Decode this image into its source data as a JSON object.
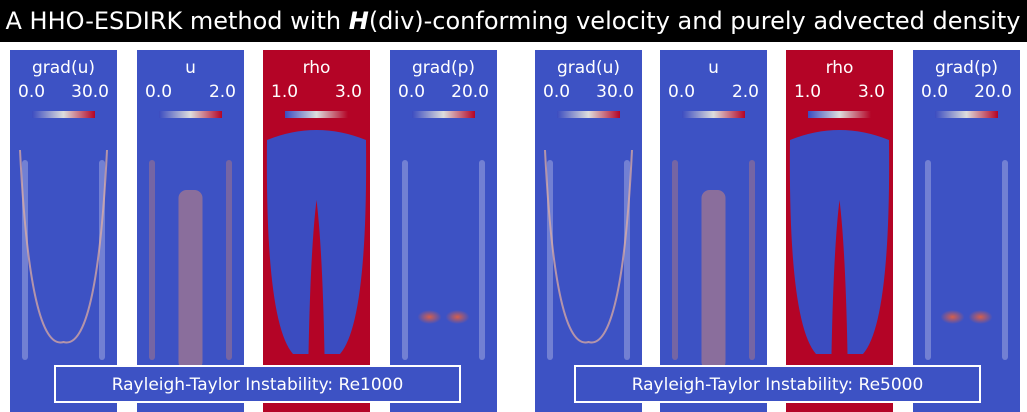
{
  "header": {
    "title_parts": [
      "A HHO-ESDIRK method with ",
      "H",
      "(div)-conforming velocity and purely advected density"
    ]
  },
  "groups": [
    {
      "caption": "Rayleigh-Taylor Instability: Re1000",
      "panels": [
        {
          "name": "grad(u)",
          "min": "0.0",
          "max": "30.0"
        },
        {
          "name": "u",
          "min": "0.0",
          "max": "2.0"
        },
        {
          "name": "rho",
          "min": "1.0",
          "max": "3.0"
        },
        {
          "name": "grad(p)",
          "min": "0.0",
          "max": "20.0"
        }
      ]
    },
    {
      "caption": "Rayleigh-Taylor Instability: Re5000",
      "panels": [
        {
          "name": "grad(u)",
          "min": "0.0",
          "max": "30.0"
        },
        {
          "name": "u",
          "min": "0.0",
          "max": "2.0"
        },
        {
          "name": "rho",
          "min": "1.0",
          "max": "3.0"
        },
        {
          "name": "grad(p)",
          "min": "0.0",
          "max": "20.0"
        }
      ]
    }
  ]
}
